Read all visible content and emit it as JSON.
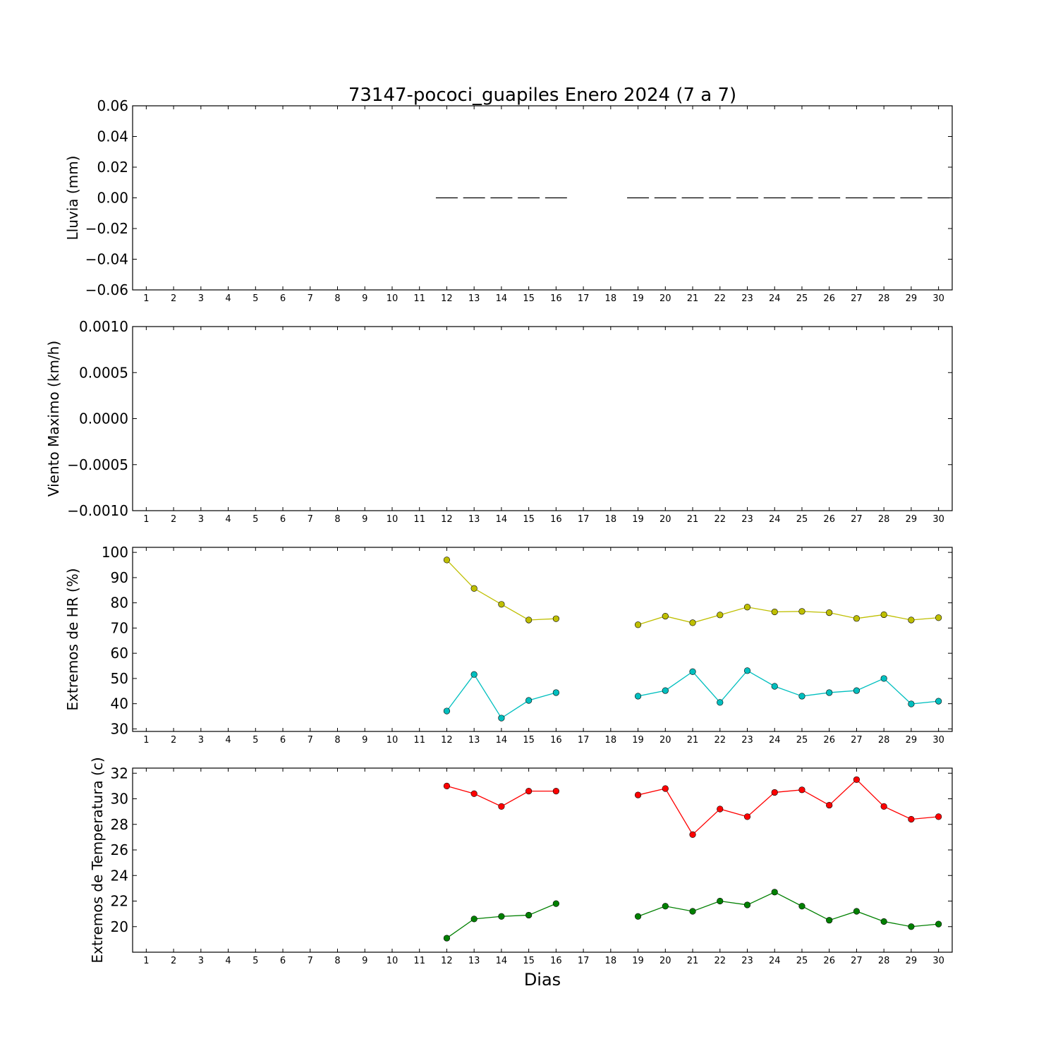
{
  "title": "73147-pococi_guapiles Enero 2024  (7 a 7)",
  "xlabel": "Dias",
  "x_ticks": [
    1,
    2,
    3,
    4,
    5,
    6,
    7,
    8,
    9,
    10,
    11,
    12,
    13,
    14,
    15,
    16,
    17,
    18,
    19,
    20,
    21,
    22,
    23,
    24,
    25,
    26,
    27,
    28,
    29,
    30
  ],
  "chart_data": [
    {
      "type": "bar",
      "ylabel": "Lluvia (mm)",
      "ylim": [
        -0.06,
        0.06
      ],
      "y_ticks": [
        "0.06",
        "0.04",
        "0.02",
        "0.00",
        "−0.02",
        "−0.04",
        "−0.06"
      ],
      "y_tick_values": [
        0.06,
        0.04,
        0.02,
        0.0,
        -0.02,
        -0.04,
        -0.06
      ],
      "x": [
        12,
        13,
        14,
        15,
        16,
        19,
        20,
        21,
        22,
        23,
        24,
        25,
        26,
        27,
        28,
        29,
        30
      ],
      "values": [
        0,
        0,
        0,
        0,
        0,
        0,
        0,
        0,
        0,
        0,
        0,
        0,
        0,
        0,
        0,
        0,
        0
      ],
      "color": "#000000"
    },
    {
      "type": "line",
      "ylabel": "Viento Maximo (km/h)",
      "ylim": [
        -0.001,
        0.001
      ],
      "y_ticks": [
        "0.0010",
        "0.0005",
        "0.0000",
        "−0.0005",
        "−0.0010"
      ],
      "y_tick_values": [
        0.001,
        0.0005,
        0.0,
        -0.0005,
        -0.001
      ],
      "series": []
    },
    {
      "type": "line",
      "ylabel": "Extremos de HR (%)",
      "ylim": [
        29,
        102
      ],
      "y_ticks": [
        "100",
        "90",
        "80",
        "70",
        "60",
        "50",
        "40",
        "30"
      ],
      "y_tick_values": [
        100,
        90,
        80,
        70,
        60,
        50,
        40,
        30
      ],
      "series": [
        {
          "color": "#bfbf00",
          "segments": [
            {
              "x": [
                12,
                13,
                14,
                15,
                16
              ],
              "y": [
                97,
                85.7,
                79.4,
                73.2,
                73.7
              ]
            },
            {
              "x": [
                19,
                20,
                21,
                22,
                23,
                24,
                25,
                26,
                27,
                28,
                29,
                30
              ],
              "y": [
                71.3,
                74.7,
                72.1,
                75.2,
                78.3,
                76.4,
                76.6,
                76.1,
                73.8,
                75.3,
                73.2,
                74.1
              ]
            }
          ]
        },
        {
          "color": "#00bfbf",
          "segments": [
            {
              "x": [
                12,
                13,
                14,
                15,
                16
              ],
              "y": [
                37.1,
                51.6,
                34.3,
                41.3,
                44.4
              ]
            },
            {
              "x": [
                19,
                20,
                21,
                22,
                23,
                24,
                25,
                26,
                27,
                28,
                29,
                30
              ],
              "y": [
                43,
                45.2,
                52.7,
                40.5,
                53.1,
                46.9,
                43,
                44.4,
                45.2,
                50,
                39.9,
                41
              ]
            }
          ]
        }
      ]
    },
    {
      "type": "line",
      "ylabel": "Extremos de Temperatura (c)",
      "ylim": [
        18,
        32.4
      ],
      "y_ticks": [
        "32",
        "30",
        "28",
        "26",
        "24",
        "22",
        "20"
      ],
      "y_tick_values": [
        32,
        30,
        28,
        26,
        24,
        22,
        20
      ],
      "series": [
        {
          "color": "#ff0000",
          "segments": [
            {
              "x": [
                12,
                13,
                14,
                15,
                16
              ],
              "y": [
                31,
                30.4,
                29.4,
                30.6,
                30.6
              ]
            },
            {
              "x": [
                19,
                20,
                21,
                22,
                23,
                24,
                25,
                26,
                27,
                28,
                29,
                30
              ],
              "y": [
                30.3,
                30.8,
                27.2,
                29.2,
                28.6,
                30.5,
                30.7,
                29.5,
                31.5,
                29.4,
                28.4,
                28.6
              ]
            }
          ]
        },
        {
          "color": "#008000",
          "segments": [
            {
              "x": [
                12,
                13,
                14,
                15,
                16
              ],
              "y": [
                19.1,
                20.6,
                20.8,
                20.9,
                21.8
              ]
            },
            {
              "x": [
                19,
                20,
                21,
                22,
                23,
                24,
                25,
                26,
                27,
                28,
                29,
                30
              ],
              "y": [
                20.8,
                21.6,
                21.2,
                22,
                21.7,
                22.7,
                21.6,
                20.5,
                21.2,
                20.4,
                20,
                20.2
              ]
            }
          ]
        }
      ]
    }
  ]
}
